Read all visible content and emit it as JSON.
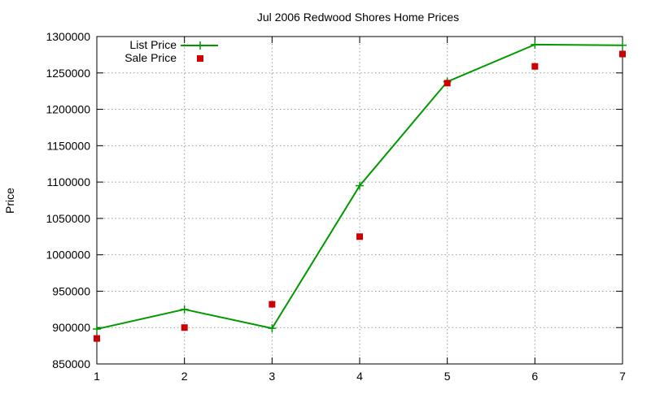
{
  "chart_data": {
    "type": "line",
    "title": "Jul 2006 Redwood Shores Home Prices",
    "xlabel": "",
    "ylabel": "Price",
    "x": [
      1,
      2,
      3,
      4,
      5,
      6,
      7
    ],
    "xlim": [
      1,
      7
    ],
    "ylim": [
      850000,
      1300000
    ],
    "xticks": [
      1,
      2,
      3,
      4,
      5,
      6,
      7
    ],
    "yticks": [
      850000,
      900000,
      950000,
      1000000,
      1050000,
      1100000,
      1150000,
      1200000,
      1250000,
      1300000
    ],
    "grid": true,
    "legend_position": "top-left",
    "series": [
      {
        "name": "List Price",
        "style": "line-with-plus-markers",
        "color": "#009900",
        "values": [
          898000,
          925000,
          899000,
          1095000,
          1238000,
          1289000,
          1288000
        ]
      },
      {
        "name": "Sale Price",
        "style": "square-markers",
        "color": "#cc0000",
        "values": [
          885000,
          900000,
          932000,
          1025000,
          1236000,
          1259000,
          1276000
        ]
      }
    ]
  }
}
